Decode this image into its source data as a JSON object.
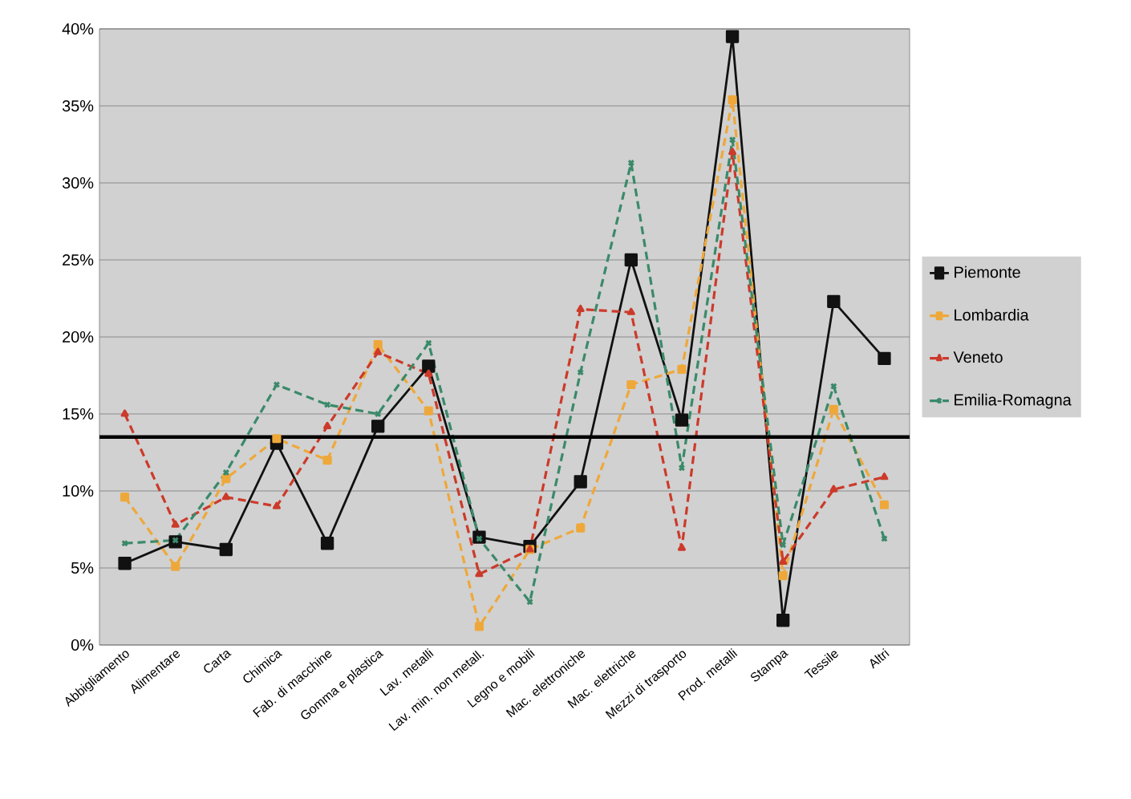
{
  "chart_data": {
    "type": "line",
    "categories": [
      "Abbigliamento",
      "Alimentare",
      "Carta",
      "Chimica",
      "Fab. di macchine",
      "Gomma e plastica",
      "Lav. metalli",
      "Lav. min. non metall.",
      "Legno e mobili",
      "Mac. elettroniche",
      "Mac. elettriche",
      "Mezzi di trasporto",
      "Prod. metalli",
      "Stampa",
      "Tessile",
      "Altri"
    ],
    "series": [
      {
        "name": "Piemonte",
        "color": "#111111",
        "marker": "square",
        "line_style": "solid",
        "values": [
          5.3,
          6.7,
          6.2,
          13.1,
          6.6,
          14.2,
          18.1,
          7.0,
          6.4,
          10.6,
          25.0,
          14.6,
          39.5,
          1.6,
          22.3,
          18.6
        ]
      },
      {
        "name": "Lombardia",
        "color": "#eea83a",
        "marker": "square",
        "line_style": "dashed",
        "values": [
          9.6,
          5.1,
          10.8,
          13.4,
          12.0,
          19.5,
          15.2,
          1.2,
          6.2,
          7.6,
          16.9,
          17.9,
          35.4,
          4.5,
          15.3,
          9.1
        ]
      },
      {
        "name": "Veneto",
        "color": "#cc3a2a",
        "marker": "triangle",
        "line_style": "dashed",
        "values": [
          15.0,
          7.8,
          9.6,
          9.0,
          14.2,
          19.0,
          17.6,
          4.6,
          6.2,
          21.8,
          21.6,
          6.3,
          32.0,
          5.4,
          10.1,
          10.9
        ]
      },
      {
        "name": "Emilia-Romagna",
        "color": "#3a8a6a",
        "marker": "cross",
        "line_style": "dashed",
        "values": [
          6.6,
          6.8,
          11.2,
          16.9,
          15.6,
          15.0,
          19.6,
          6.9,
          2.8,
          17.7,
          31.3,
          11.5,
          32.8,
          6.5,
          16.8,
          6.9
        ]
      }
    ],
    "ylim": [
      0,
      40
    ],
    "yticks": [
      {
        "value": 0,
        "label": "0%"
      },
      {
        "value": 5,
        "label": "5%"
      },
      {
        "value": 10,
        "label": "10%"
      },
      {
        "value": 15,
        "label": "15%"
      },
      {
        "value": 20,
        "label": "20%"
      },
      {
        "value": 25,
        "label": "25%"
      },
      {
        "value": 30,
        "label": "30%"
      },
      {
        "value": 35,
        "label": "35%"
      },
      {
        "value": 40,
        "label": "40%"
      }
    ],
    "grid": "y",
    "legend": "right",
    "ref_lines": [
      {
        "axis": "y",
        "value": 13.5,
        "color": "#000000"
      }
    ]
  }
}
